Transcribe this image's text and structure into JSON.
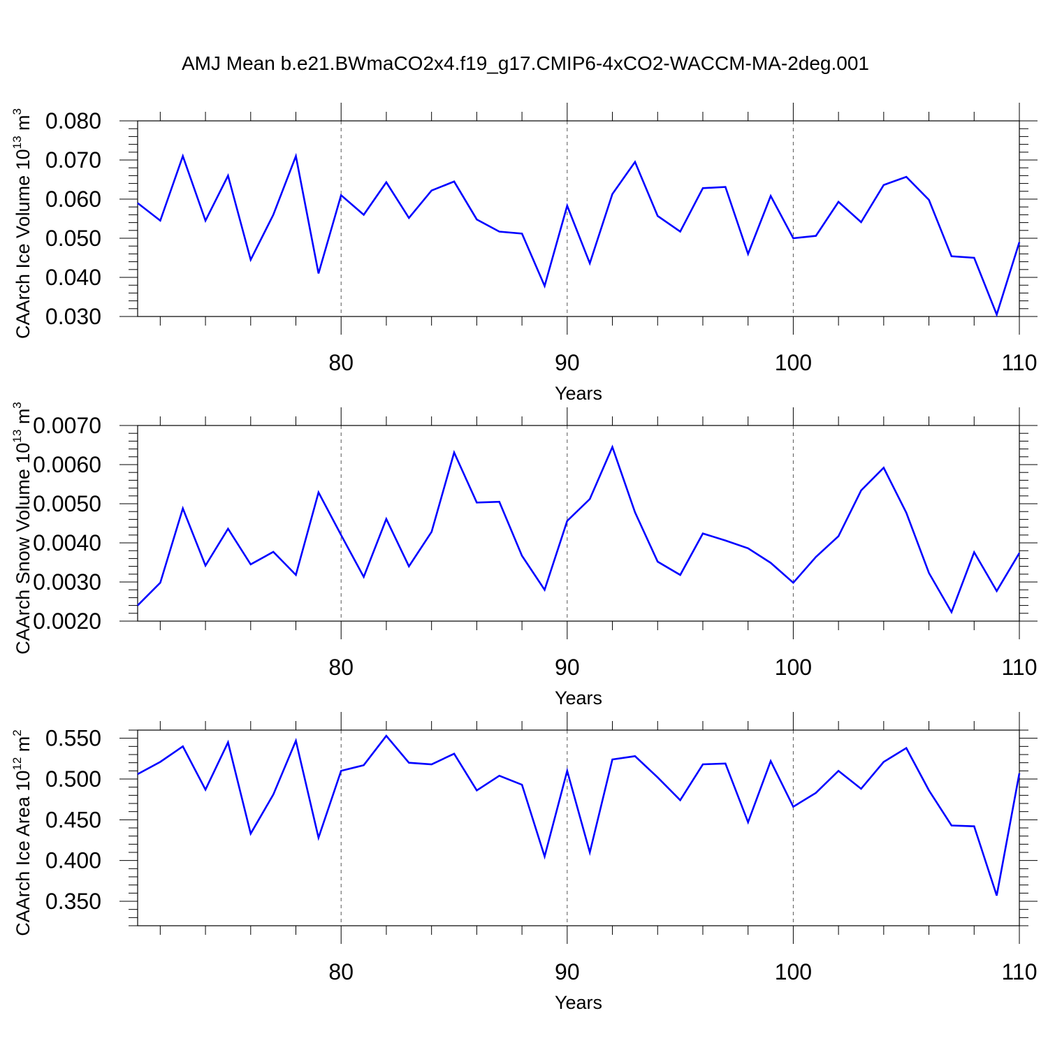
{
  "title": "AMJ Mean b.e21.BWmaCO2x4.f19_g17.CMIP6-4xCO2-WACCM-MA-2deg.001",
  "chart_data": [
    {
      "type": "line",
      "title": "AMJ Mean b.e21.BWmaCO2x4.f19_g17.CMIP6-4xCO2-WACCM-MA-2deg.001",
      "xlabel": "Years",
      "ylabel": {
        "text": "CAArch Ice Volume 10",
        "exp": "13",
        "unit": " m",
        "unit_exp": "3"
      },
      "xlim": [
        71,
        110
      ],
      "ylim": [
        0.03,
        0.08
      ],
      "x_ticks": [
        "80",
        "90",
        "100",
        "110"
      ],
      "y_ticks": [
        "0.030",
        "0.040",
        "0.050",
        "0.060",
        "0.070",
        "0.080"
      ],
      "grid": "dashed vertical at major x ticks",
      "series": [
        {
          "color": "#0000ff",
          "x": [
            71,
            72,
            73,
            74,
            75,
            76,
            77,
            78,
            79,
            80,
            81,
            82,
            83,
            84,
            85,
            86,
            87,
            88,
            89,
            90,
            91,
            92,
            93,
            94,
            95,
            96,
            97,
            98,
            99,
            100,
            101,
            102,
            103,
            104,
            105,
            106,
            107,
            108,
            109,
            110
          ],
          "values": [
            0.059,
            0.0545,
            0.071,
            0.0545,
            0.066,
            0.0445,
            0.056,
            0.071,
            0.041,
            0.061,
            0.056,
            0.0643,
            0.0552,
            0.0622,
            0.0645,
            0.0548,
            0.0517,
            0.0512,
            0.0378,
            0.0583,
            0.0436,
            0.0613,
            0.0695,
            0.0557,
            0.0517,
            0.0628,
            0.0631,
            0.046,
            0.0608,
            0.05,
            0.0506,
            0.0593,
            0.0541,
            0.0636,
            0.0657,
            0.0598,
            0.0454,
            0.045,
            0.0305,
            0.049
          ]
        }
      ]
    },
    {
      "type": "line",
      "xlabel": "Years",
      "ylabel": {
        "text": "CAArch Snow Volume 10",
        "exp": "13",
        "unit": " m",
        "unit_exp": "3"
      },
      "xlim": [
        71,
        110
      ],
      "ylim": [
        0.002,
        0.007
      ],
      "x_ticks": [
        "80",
        "90",
        "100",
        "110"
      ],
      "y_ticks": [
        "0.0020",
        "0.0030",
        "0.0040",
        "0.0050",
        "0.0060",
        "0.0070"
      ],
      "grid": "dashed vertical at major x ticks",
      "series": [
        {
          "color": "#0000ff",
          "x": [
            71,
            72,
            73,
            74,
            75,
            76,
            77,
            78,
            79,
            80,
            81,
            82,
            83,
            84,
            85,
            86,
            87,
            88,
            89,
            90,
            91,
            92,
            93,
            94,
            95,
            96,
            97,
            98,
            99,
            100,
            101,
            102,
            103,
            104,
            105,
            106,
            107,
            108,
            109,
            110
          ],
          "values": [
            0.0024,
            0.00298,
            0.00488,
            0.00342,
            0.00436,
            0.00345,
            0.00377,
            0.00318,
            0.00529,
            0.0042,
            0.00313,
            0.00461,
            0.0034,
            0.00428,
            0.00631,
            0.00503,
            0.00505,
            0.00367,
            0.0028,
            0.00456,
            0.00512,
            0.00645,
            0.00478,
            0.00352,
            0.00318,
            0.00424,
            0.00406,
            0.00386,
            0.00349,
            0.00298,
            0.00364,
            0.00417,
            0.00534,
            0.00592,
            0.00477,
            0.00323,
            0.00223,
            0.00376,
            0.00277,
            0.00374
          ]
        }
      ]
    },
    {
      "type": "line",
      "xlabel": "Years",
      "ylabel": {
        "text": "CAArch Ice Area 10",
        "exp": "12",
        "unit": " m",
        "unit_exp": "2"
      },
      "xlim": [
        71,
        110
      ],
      "ylim": [
        0.32,
        0.56
      ],
      "x_ticks": [
        "80",
        "90",
        "100",
        "110"
      ],
      "y_ticks": [
        "0.350",
        "0.400",
        "0.450",
        "0.500",
        "0.550"
      ],
      "grid": "dashed vertical at major x ticks",
      "series": [
        {
          "color": "#0000ff",
          "x": [
            71,
            72,
            73,
            74,
            75,
            76,
            77,
            78,
            79,
            80,
            81,
            82,
            83,
            84,
            85,
            86,
            87,
            88,
            89,
            90,
            91,
            92,
            93,
            94,
            95,
            96,
            97,
            98,
            99,
            100,
            101,
            102,
            103,
            104,
            105,
            106,
            107,
            108,
            109,
            110
          ],
          "values": [
            0.506,
            0.521,
            0.54,
            0.487,
            0.545,
            0.433,
            0.481,
            0.547,
            0.428,
            0.51,
            0.517,
            0.553,
            0.52,
            0.518,
            0.531,
            0.486,
            0.504,
            0.493,
            0.405,
            0.51,
            0.41,
            0.524,
            0.528,
            0.502,
            0.474,
            0.518,
            0.519,
            0.447,
            0.522,
            0.466,
            0.483,
            0.51,
            0.488,
            0.521,
            0.538,
            0.486,
            0.443,
            0.442,
            0.357,
            0.507
          ]
        }
      ]
    }
  ]
}
